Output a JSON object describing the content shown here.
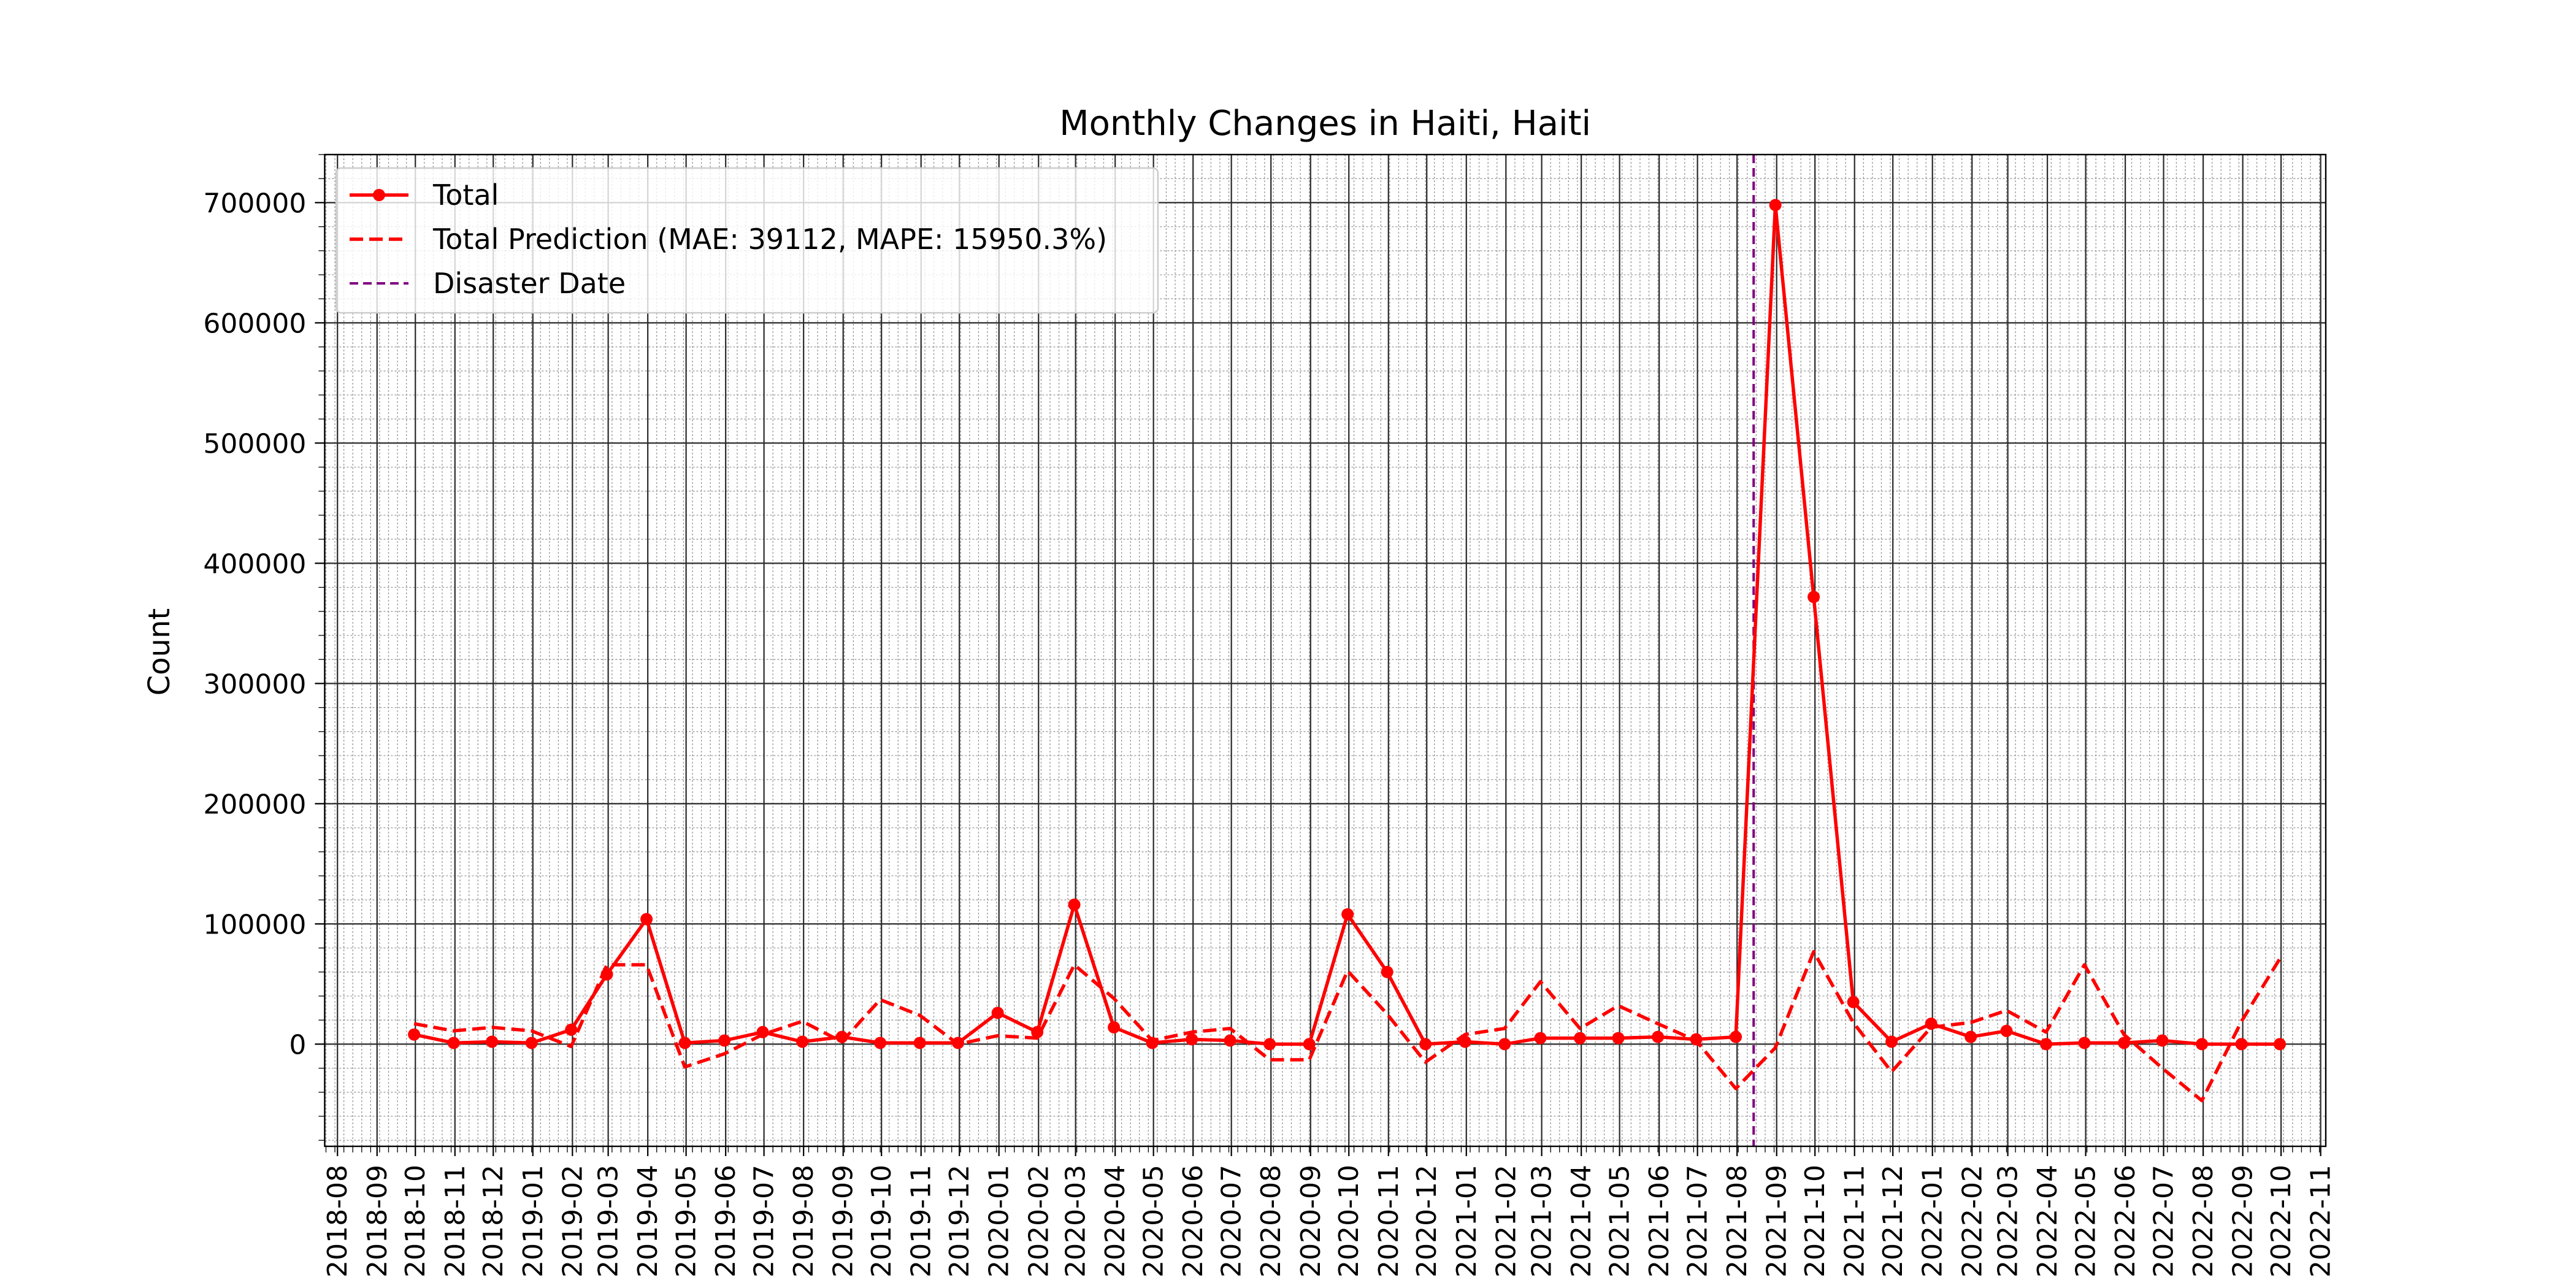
{
  "chart_data": {
    "type": "line",
    "title": "Monthly Changes in Haiti, Haiti",
    "xlabel": "",
    "ylabel": "Count",
    "x_ticks": [
      "2018-08",
      "2018-09",
      "2018-10",
      "2018-11",
      "2018-12",
      "2019-01",
      "2019-02",
      "2019-03",
      "2019-04",
      "2019-05",
      "2019-06",
      "2019-07",
      "2019-08",
      "2019-09",
      "2019-10",
      "2019-11",
      "2019-12",
      "2020-01",
      "2020-02",
      "2020-03",
      "2020-04",
      "2020-05",
      "2020-06",
      "2020-07",
      "2020-08",
      "2020-09",
      "2020-10",
      "2020-11",
      "2020-12",
      "2021-01",
      "2021-02",
      "2021-03",
      "2021-04",
      "2021-05",
      "2021-06",
      "2021-07",
      "2021-08",
      "2021-09",
      "2021-10",
      "2021-11",
      "2021-12",
      "2022-01",
      "2022-02",
      "2022-03",
      "2022-04",
      "2022-05",
      "2022-06",
      "2022-07",
      "2022-08",
      "2022-09",
      "2022-10",
      "2022-11"
    ],
    "y_ticks": [
      0,
      100000,
      200000,
      300000,
      400000,
      500000,
      600000,
      700000
    ],
    "ylim": [
      -85000,
      740000
    ],
    "xlim": [
      "2018-07-22",
      "2022-11-05"
    ],
    "grid": true,
    "legend_position": "top-left",
    "x": [
      "2018-09-30",
      "2018-10-31",
      "2018-11-30",
      "2018-12-31",
      "2019-01-31",
      "2019-02-28",
      "2019-03-31",
      "2019-04-30",
      "2019-05-31",
      "2019-06-30",
      "2019-07-31",
      "2019-08-31",
      "2019-09-30",
      "2019-10-31",
      "2019-11-30",
      "2019-12-31",
      "2020-01-31",
      "2020-02-29",
      "2020-03-31",
      "2020-04-30",
      "2020-05-31",
      "2020-06-30",
      "2020-07-31",
      "2020-08-31",
      "2020-09-30",
      "2020-10-31",
      "2020-11-30",
      "2020-12-31",
      "2021-01-31",
      "2021-02-28",
      "2021-03-31",
      "2021-04-30",
      "2021-05-31",
      "2021-06-30",
      "2021-07-31",
      "2021-08-31",
      "2021-09-30",
      "2021-10-31",
      "2021-11-30",
      "2021-12-31",
      "2022-01-31",
      "2022-02-28",
      "2022-03-31",
      "2022-04-30",
      "2022-05-31",
      "2022-06-30",
      "2022-07-31",
      "2022-08-31",
      "2022-09-30"
    ],
    "series": [
      {
        "name": "Total",
        "color": "#ff0000",
        "style": "solid-markers",
        "values": [
          8000,
          1000,
          2000,
          1000,
          12000,
          58000,
          104000,
          1000,
          3000,
          10000,
          2000,
          6000,
          1000,
          1000,
          1000,
          26000,
          10000,
          116000,
          14000,
          1000,
          4000,
          3000,
          0,
          0,
          108000,
          60000,
          0,
          2000,
          0,
          5000,
          5000,
          5000,
          6000,
          4000,
          6000,
          698000,
          372000,
          35000,
          2000,
          17000,
          6000,
          11000,
          0,
          1000,
          1000,
          3000,
          0,
          0,
          0
        ]
      },
      {
        "name": "Total Prediction (MAE: 39112, MAPE: 15950.3%)",
        "color": "#ff0000",
        "style": "dashed",
        "values": [
          17000,
          11000,
          14000,
          11000,
          -2000,
          66000,
          66000,
          -19000,
          -8000,
          8000,
          19000,
          2000,
          37000,
          24000,
          0,
          7000,
          5000,
          66000,
          38000,
          3000,
          10000,
          13000,
          -13000,
          -13000,
          61000,
          25000,
          -15000,
          8000,
          13000,
          52000,
          13000,
          32000,
          17000,
          3000,
          -37000,
          -3000,
          77000,
          18000,
          -23000,
          14000,
          18000,
          28000,
          10000,
          66000,
          8000,
          -20000,
          -47000,
          19000,
          71000
        ]
      }
    ],
    "annotations": [
      {
        "name": "Disaster Date",
        "type": "vline",
        "x": "2021-08-14",
        "color": "#800080",
        "style": "dashed"
      }
    ]
  }
}
